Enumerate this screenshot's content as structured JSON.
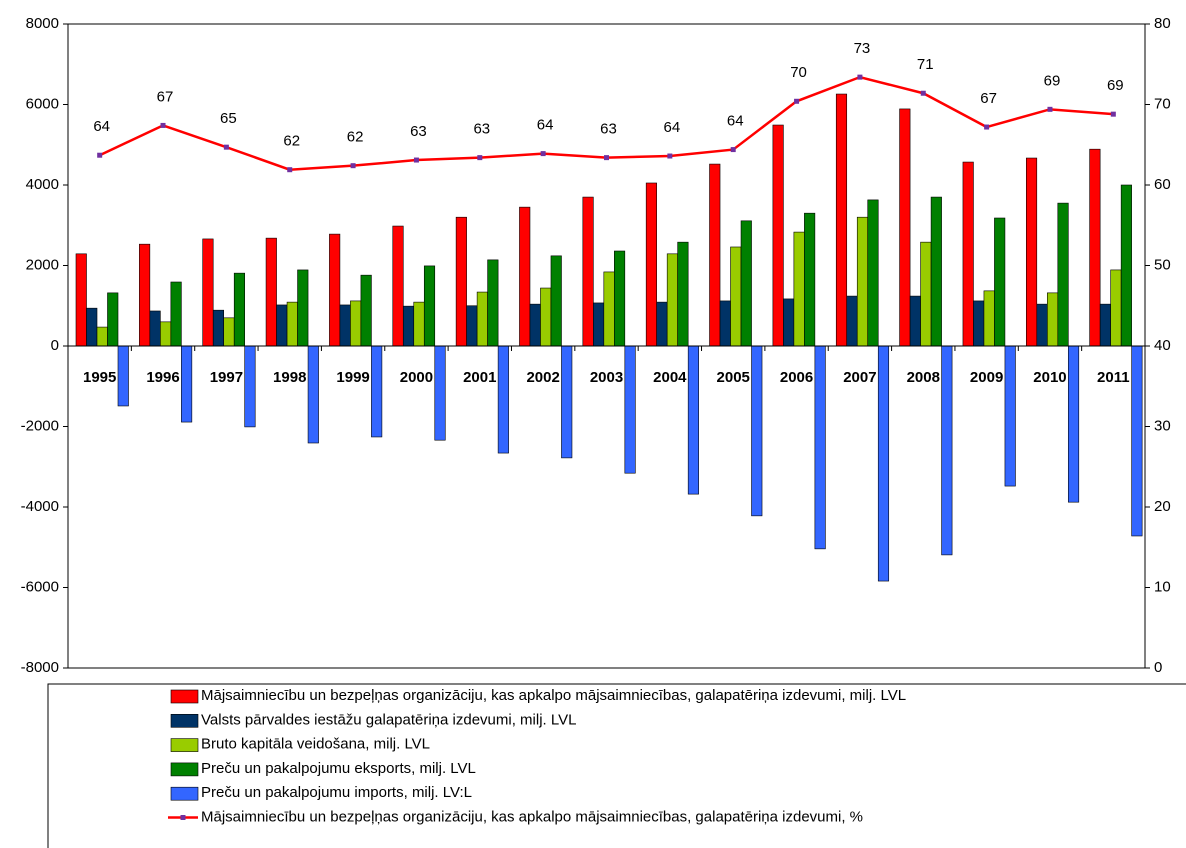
{
  "chart_data": {
    "type": "bar_line",
    "categories": [
      "1995",
      "1996",
      "1997",
      "1998",
      "1999",
      "2000",
      "2001",
      "2002",
      "2003",
      "2004",
      "2005",
      "2006",
      "2007",
      "2008",
      "2009",
      "2010",
      "2011"
    ],
    "series": [
      {
        "name": "Mājsaimniecību un bezpeļņas organizāciju, kas apkalpo mājsaimniecības, galapatēriņa izdevumi, milj. LVL",
        "color": "#ff0000",
        "values": [
          2290,
          2530,
          2660,
          2680,
          2780,
          2980,
          3200,
          3450,
          3700,
          4050,
          4520,
          5490,
          6260,
          5890,
          4570,
          4670,
          4890
        ]
      },
      {
        "name": "Valsts pārvaldes iestāžu galapatēriņa izdevumi, milj. LVL",
        "color": "#003366",
        "values": [
          940,
          870,
          890,
          1020,
          1020,
          990,
          1000,
          1040,
          1070,
          1090,
          1120,
          1170,
          1240,
          1240,
          1120,
          1040,
          1040
        ]
      },
      {
        "name": "Bruto kapitāla veidošana, milj. LVL",
        "color": "#99cc00",
        "values": [
          470,
          600,
          700,
          1090,
          1120,
          1090,
          1340,
          1440,
          1840,
          2290,
          2460,
          2830,
          3200,
          2580,
          1370,
          1320,
          1890
        ]
      },
      {
        "name": "Preču un pakalpojumu eksports, milj. LVL",
        "color": "#008000",
        "values": [
          1320,
          1590,
          1810,
          1890,
          1760,
          1990,
          2140,
          2240,
          2360,
          2580,
          3110,
          3300,
          3630,
          3700,
          3180,
          3550,
          4000
        ]
      },
      {
        "name": "Preču un pakalpojumu imports, milj. LV:L",
        "color": "#3366ff",
        "values": [
          -1490,
          -1890,
          -2010,
          -2410,
          -2260,
          -2340,
          -2660,
          -2780,
          -3160,
          -3680,
          -4220,
          -5040,
          -5840,
          -5190,
          -3480,
          -3880,
          -4720
        ]
      },
      {
        "name": "Mājsaimniecību un bezpeļņas organizāciju, kas apkalpo mājsaimniecības, galapatēriņa izdevumi, %",
        "color": "#ff0000",
        "marker_color": "#7030a0",
        "axis": "y2",
        "kind": "line",
        "values": [
          63.7,
          67.4,
          64.7,
          61.9,
          62.4,
          63.1,
          63.4,
          63.9,
          63.4,
          63.6,
          64.4,
          70.4,
          73.4,
          71.4,
          67.2,
          69.4,
          68.8
        ],
        "value_labels": [
          "64",
          "67",
          "65",
          "62",
          "62",
          "63",
          "63",
          "64",
          "63",
          "64",
          "64",
          "70",
          "73",
          "71",
          "67",
          "69",
          "69"
        ]
      }
    ],
    "ylim": [
      -8000,
      8000
    ],
    "yticks": [
      -8000,
      -6000,
      -4000,
      -2000,
      0,
      2000,
      4000,
      6000,
      8000
    ],
    "y2lim": [
      0,
      80
    ],
    "y2ticks": [
      0,
      10,
      20,
      30,
      40,
      50,
      60,
      70,
      80
    ]
  }
}
